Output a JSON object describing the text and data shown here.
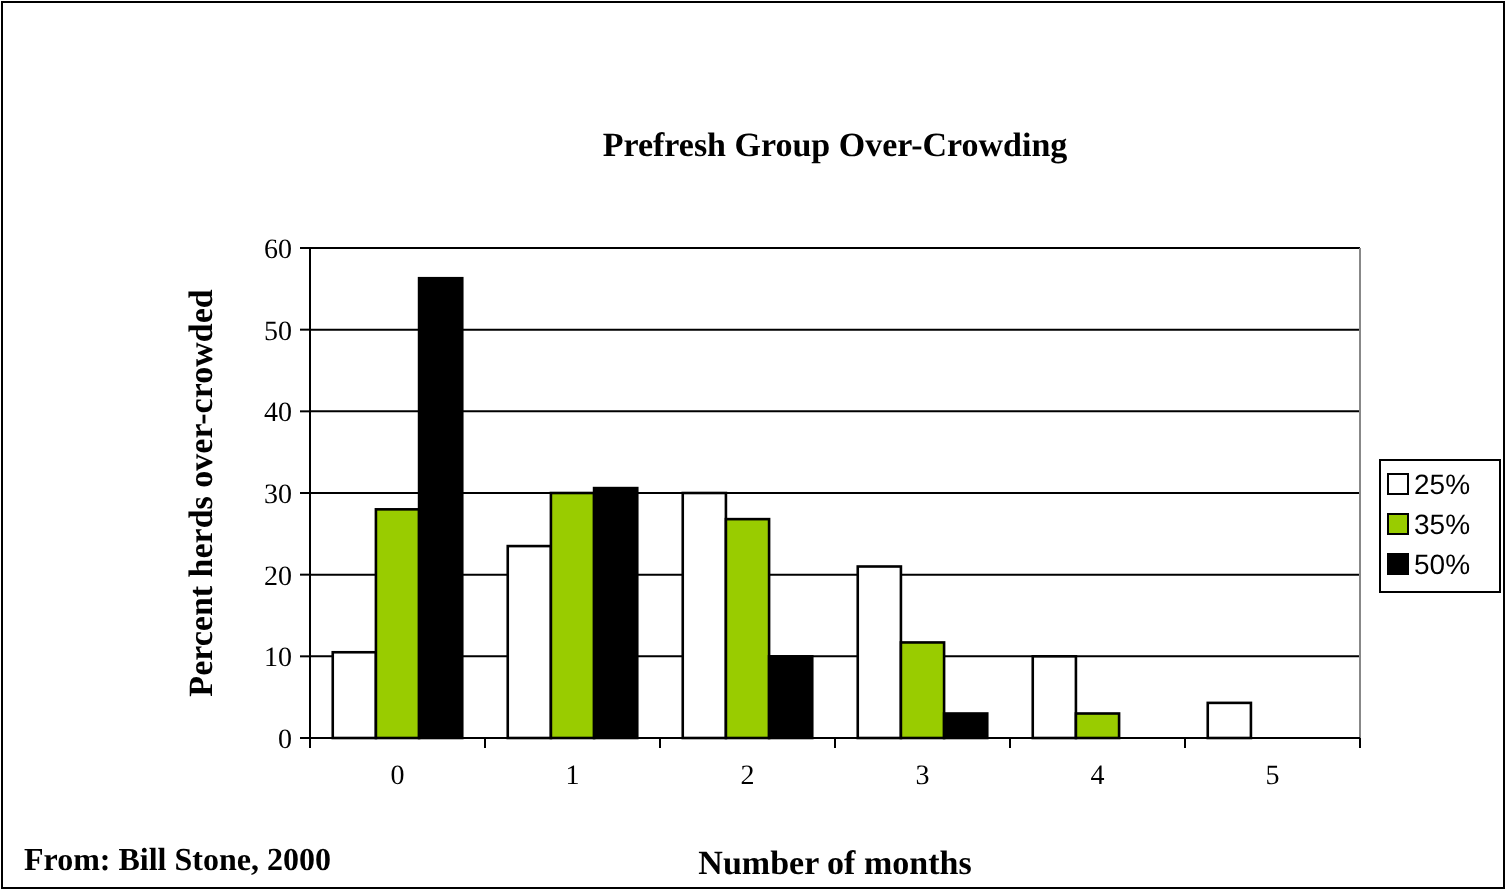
{
  "chart_data": {
    "type": "bar",
    "title": "Prefresh Group Over-Crowding",
    "xlabel": "Number of months",
    "ylabel": "Percent herds over-crowded",
    "annotations": [
      "From: Bill Stone, 2000"
    ],
    "categories": [
      "0",
      "1",
      "2",
      "3",
      "4",
      "5"
    ],
    "series": [
      {
        "name": "25%",
        "color": "#ffffff",
        "values": [
          10.5,
          23.5,
          30,
          21,
          10,
          4.3
        ]
      },
      {
        "name": "35%",
        "color": "#99cc00",
        "values": [
          28,
          30,
          26.8,
          11.7,
          3,
          0
        ]
      },
      {
        "name": "50%",
        "color": "#000000",
        "values": [
          56.3,
          30.6,
          10,
          3,
          0,
          0
        ]
      }
    ],
    "ylim": [
      0,
      60
    ],
    "yticks": [
      0,
      10,
      20,
      30,
      40,
      50,
      60
    ],
    "grid": "y",
    "legend": "right"
  }
}
